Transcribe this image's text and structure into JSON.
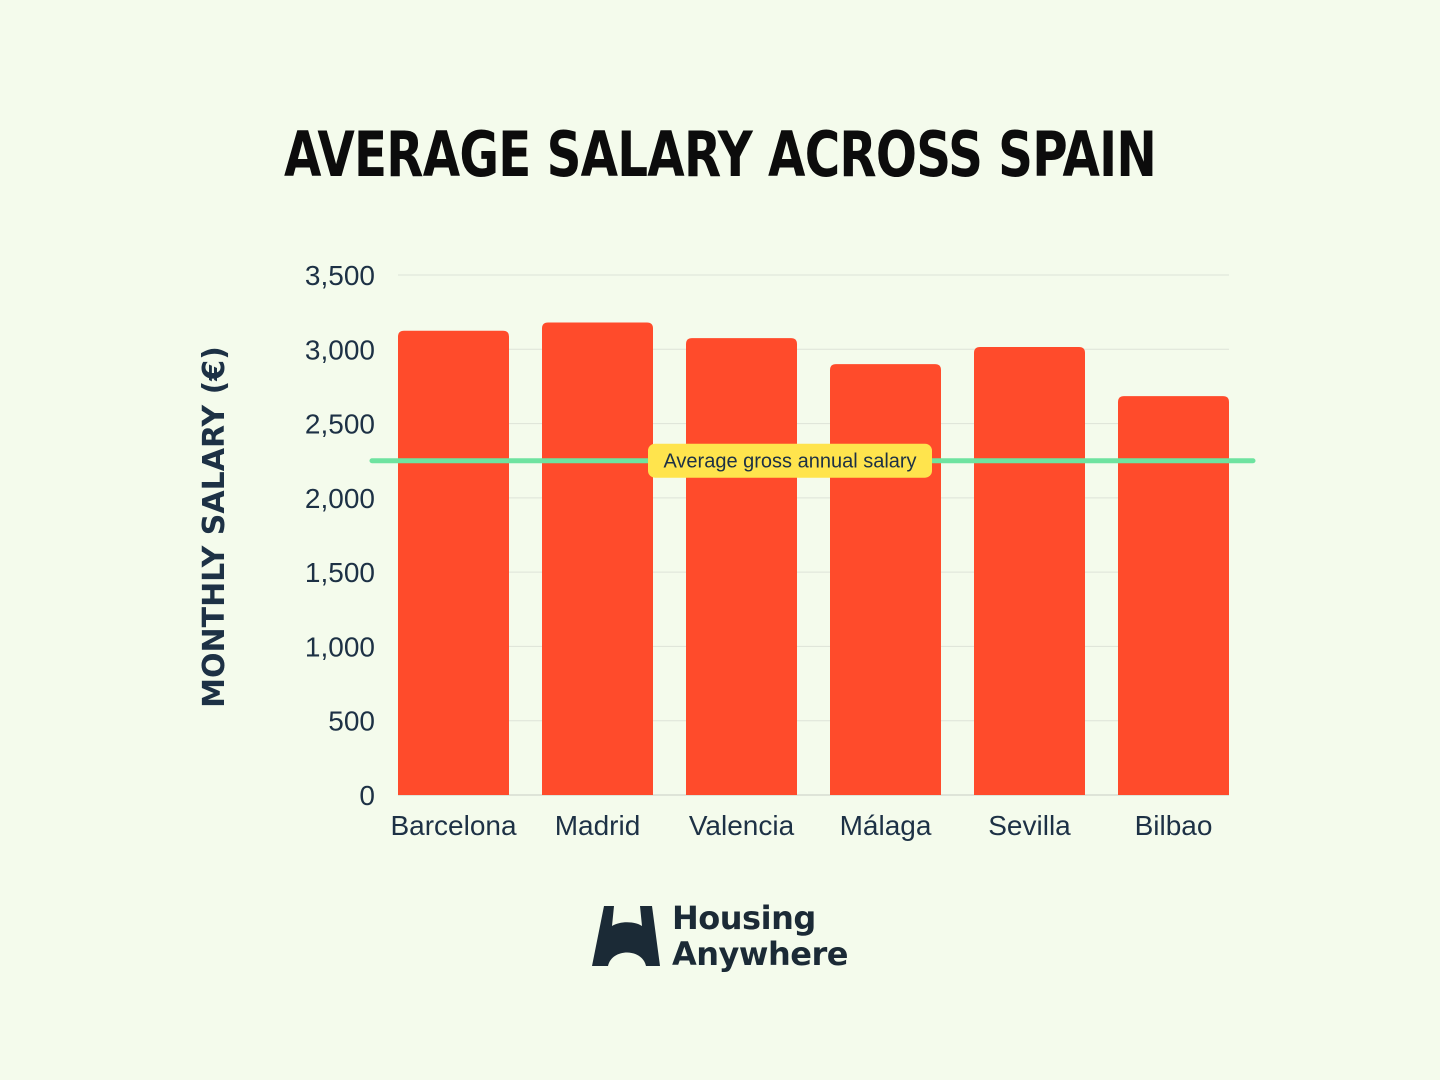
{
  "chart_data": {
    "type": "bar",
    "title": "AVERAGE SALARY ACROSS SPAIN",
    "ylabel": "MONTHLY SALARY (€)",
    "xlabel": "",
    "categories": [
      "Barcelona",
      "Madrid",
      "Valencia",
      "Málaga",
      "Sevilla",
      "Bilbao"
    ],
    "values": [
      3125,
      3180,
      3075,
      2900,
      3015,
      2685
    ],
    "ylim": [
      0,
      3500
    ],
    "yticks": [
      0,
      500,
      1000,
      1500,
      2000,
      2500,
      3000,
      3500
    ],
    "ytick_labels": [
      "0",
      "500",
      "1,000",
      "1,500",
      "2,000",
      "2,500",
      "3,000",
      "3,500"
    ],
    "grid": "horizontal",
    "bar_color": "#ff4b2b",
    "reference_line": {
      "value": 2250,
      "label": "Average gross annual salary",
      "color": "#6ee3a0",
      "label_bg": "#ffe44d"
    }
  },
  "brand": {
    "line1": "Housing",
    "line2": "Anywhere",
    "color": "#1b2a36"
  }
}
